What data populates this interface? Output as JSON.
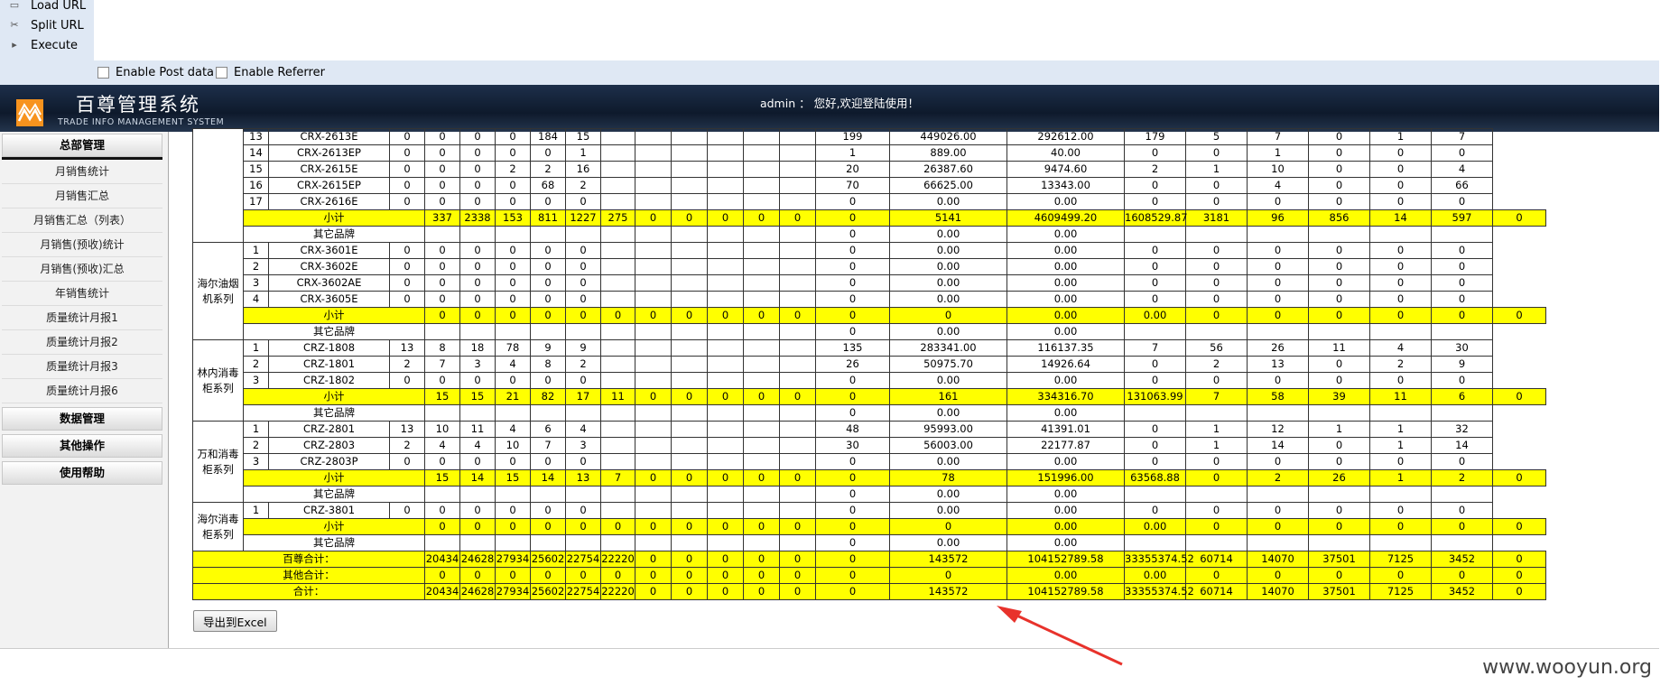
{
  "toolbar": {
    "load_url": "Load URL",
    "split_url": "Split URL",
    "execute": "Execute",
    "enable_post": "Enable Post data",
    "enable_referrer": "Enable Referrer"
  },
  "header": {
    "title": "百尊管理系统",
    "subtitle": "TRADE INFO MANAGEMENT SYSTEM",
    "welcome": "admin ： 您好,欢迎登陆使用！"
  },
  "sidebar": {
    "section1": "总部管理",
    "items": [
      "月销售统计",
      "月销售汇总",
      "月销售汇总（列表）",
      "月销售(预收)统计",
      "月销售(预收)汇总",
      "年销售统计",
      "质量统计月报1",
      "质量统计月报2",
      "质量统计月报3",
      "质量统计月报6"
    ],
    "section2": "数据管理",
    "section3": "其他操作",
    "section4": "使用帮助"
  },
  "table": {
    "groups": [
      {
        "name": "",
        "rows": [
          [
            "13",
            "CRX-2613E",
            "0",
            "0",
            "0",
            "0",
            "184",
            "15",
            "",
            "",
            "",
            "",
            "",
            "",
            "199",
            "449026.00",
            "292612.00",
            "179",
            "5",
            "7",
            "0",
            "1",
            "7"
          ],
          [
            "14",
            "CRX-2613EP",
            "0",
            "0",
            "0",
            "0",
            "0",
            "1",
            "",
            "",
            "",
            "",
            "",
            "",
            "1",
            "889.00",
            "40.00",
            "0",
            "0",
            "1",
            "0",
            "0",
            "0"
          ],
          [
            "15",
            "CRX-2615E",
            "0",
            "0",
            "0",
            "2",
            "2",
            "16",
            "",
            "",
            "",
            "",
            "",
            "",
            "20",
            "26387.60",
            "9474.60",
            "2",
            "1",
            "10",
            "0",
            "0",
            "4"
          ],
          [
            "16",
            "CRX-2615EP",
            "0",
            "0",
            "0",
            "0",
            "68",
            "2",
            "",
            "",
            "",
            "",
            "",
            "",
            "70",
            "66625.00",
            "13343.00",
            "0",
            "0",
            "4",
            "0",
            "0",
            "66"
          ],
          [
            "17",
            "CRX-2616E",
            "0",
            "0",
            "0",
            "0",
            "0",
            "0",
            "",
            "",
            "",
            "",
            "",
            "",
            "0",
            "0.00",
            "0.00",
            "0",
            "0",
            "0",
            "0",
            "0",
            "0"
          ]
        ],
        "subtotal": [
          "小计",
          "337",
          "2338",
          "153",
          "811",
          "1227",
          "275",
          "0",
          "0",
          "0",
          "0",
          "0",
          "0",
          "5141",
          "4609499.20",
          "1608529.87",
          "3181",
          "96",
          "856",
          "14",
          "597",
          "0"
        ]
      },
      {
        "name": "海尔油烟机系列",
        "rows": [
          [
            "1",
            "CRX-3601E",
            "0",
            "0",
            "0",
            "0",
            "0",
            "0",
            "",
            "",
            "",
            "",
            "",
            "",
            "0",
            "0.00",
            "0.00",
            "0",
            "0",
            "0",
            "0",
            "0",
            "0"
          ],
          [
            "2",
            "CRX-3602E",
            "0",
            "0",
            "0",
            "0",
            "0",
            "0",
            "",
            "",
            "",
            "",
            "",
            "",
            "0",
            "0.00",
            "0.00",
            "0",
            "0",
            "0",
            "0",
            "0",
            "0"
          ],
          [
            "3",
            "CRX-3602AE",
            "0",
            "0",
            "0",
            "0",
            "0",
            "0",
            "",
            "",
            "",
            "",
            "",
            "",
            "0",
            "0.00",
            "0.00",
            "0",
            "0",
            "0",
            "0",
            "0",
            "0"
          ],
          [
            "4",
            "CRX-3605E",
            "0",
            "0",
            "0",
            "0",
            "0",
            "0",
            "",
            "",
            "",
            "",
            "",
            "",
            "0",
            "0.00",
            "0.00",
            "0",
            "0",
            "0",
            "0",
            "0",
            "0"
          ]
        ],
        "subtotal": [
          "小计",
          "0",
          "0",
          "0",
          "0",
          "0",
          "0",
          "0",
          "0",
          "0",
          "0",
          "0",
          "0",
          "0",
          "0.00",
          "0.00",
          "0",
          "0",
          "0",
          "0",
          "0",
          "0"
        ]
      },
      {
        "name": "林内消毒柜系列",
        "rows": [
          [
            "1",
            "CRZ-1808",
            "13",
            "8",
            "18",
            "78",
            "9",
            "9",
            "",
            "",
            "",
            "",
            "",
            "",
            "135",
            "283341.00",
            "116137.35",
            "7",
            "56",
            "26",
            "11",
            "4",
            "30"
          ],
          [
            "2",
            "CRZ-1801",
            "2",
            "7",
            "3",
            "4",
            "8",
            "2",
            "",
            "",
            "",
            "",
            "",
            "",
            "26",
            "50975.70",
            "14926.64",
            "0",
            "2",
            "13",
            "0",
            "2",
            "9"
          ],
          [
            "3",
            "CRZ-1802",
            "0",
            "0",
            "0",
            "0",
            "0",
            "0",
            "",
            "",
            "",
            "",
            "",
            "",
            "0",
            "0.00",
            "0.00",
            "0",
            "0",
            "0",
            "0",
            "0",
            "0"
          ]
        ],
        "subtotal": [
          "小计",
          "15",
          "15",
          "21",
          "82",
          "17",
          "11",
          "0",
          "0",
          "0",
          "0",
          "0",
          "0",
          "161",
          "334316.70",
          "131063.99",
          "7",
          "58",
          "39",
          "11",
          "6",
          "0"
        ]
      },
      {
        "name": "万和消毒柜系列",
        "rows": [
          [
            "1",
            "CRZ-2801",
            "13",
            "10",
            "11",
            "4",
            "6",
            "4",
            "",
            "",
            "",
            "",
            "",
            "",
            "48",
            "95993.00",
            "41391.01",
            "0",
            "1",
            "12",
            "1",
            "1",
            "32"
          ],
          [
            "2",
            "CRZ-2803",
            "2",
            "4",
            "4",
            "10",
            "7",
            "3",
            "",
            "",
            "",
            "",
            "",
            "",
            "30",
            "56003.00",
            "22177.87",
            "0",
            "1",
            "14",
            "0",
            "1",
            "14"
          ],
          [
            "3",
            "CRZ-2803P",
            "0",
            "0",
            "0",
            "0",
            "0",
            "0",
            "",
            "",
            "",
            "",
            "",
            "",
            "0",
            "0.00",
            "0.00",
            "0",
            "0",
            "0",
            "0",
            "0",
            "0"
          ]
        ],
        "subtotal": [
          "小计",
          "15",
          "14",
          "15",
          "14",
          "13",
          "7",
          "0",
          "0",
          "0",
          "0",
          "0",
          "0",
          "78",
          "151996.00",
          "63568.88",
          "0",
          "2",
          "26",
          "1",
          "2",
          "0"
        ]
      },
      {
        "name": "海尔消毒柜系列",
        "rows": [
          [
            "1",
            "CRZ-3801",
            "0",
            "0",
            "0",
            "0",
            "0",
            "0",
            "",
            "",
            "",
            "",
            "",
            "",
            "0",
            "0.00",
            "0.00",
            "0",
            "0",
            "0",
            "0",
            "0",
            "0"
          ]
        ],
        "subtotal": [
          "小计",
          "0",
          "0",
          "0",
          "0",
          "0",
          "0",
          "0",
          "0",
          "0",
          "0",
          "0",
          "0",
          "0",
          "0.00",
          "0.00",
          "0",
          "0",
          "0",
          "0",
          "0",
          "0"
        ]
      }
    ],
    "other_brand": [
      "其它品牌",
      "0",
      "0.00",
      "0.00"
    ],
    "totals": [
      [
        "百尊合计：",
        "20434",
        "24628",
        "27934",
        "25602",
        "22754",
        "22220",
        "0",
        "0",
        "0",
        "0",
        "0",
        "0",
        "143572",
        "104152789.58",
        "33355374.52",
        "60714",
        "14070",
        "37501",
        "7125",
        "3452",
        "0"
      ],
      [
        "其他合计：",
        "0",
        "0",
        "0",
        "0",
        "0",
        "0",
        "0",
        "0",
        "0",
        "0",
        "0",
        "0",
        "0",
        "0.00",
        "0.00",
        "0",
        "0",
        "0",
        "0",
        "0",
        "0"
      ],
      [
        "合计：",
        "20434",
        "24628",
        "27934",
        "25602",
        "22754",
        "22220",
        "0",
        "0",
        "0",
        "0",
        "0",
        "0",
        "143572",
        "104152789.58",
        "33355374.52",
        "60714",
        "14070",
        "37501",
        "7125",
        "3452",
        "0"
      ]
    ]
  },
  "export_button": "导出到Excel",
  "watermark": "www.wooyun.org",
  "colors": {
    "highlight": "#ffff00",
    "header_bg": "#132236",
    "toolbar_bg": "#dfe8f4",
    "logo": "#f7931e",
    "arrow": "#e8322b"
  }
}
